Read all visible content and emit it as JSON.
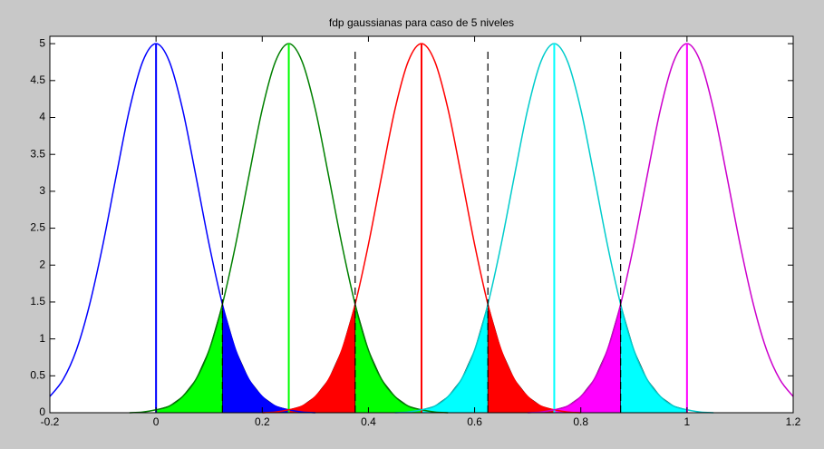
{
  "chart_data": {
    "type": "line",
    "title": "fdp gaussianas para caso de 5 niveles",
    "xlim": [
      -0.2,
      1.2
    ],
    "xticks": [
      -0.2,
      0,
      0.2,
      0.4,
      0.6,
      0.8,
      1,
      1.2
    ],
    "ylim": [
      0,
      5.1
    ],
    "yticks": [
      0,
      0.5,
      1,
      1.5,
      2,
      2.5,
      3,
      3.5,
      4,
      4.5,
      5
    ],
    "means": [
      0,
      0.25,
      0.5,
      0.75,
      1
    ],
    "thresholds": [
      0.125,
      0.375,
      0.625,
      0.875
    ],
    "threshold_top": 4.9,
    "series": [
      {
        "color": "#0000ff",
        "stem_color": "#0000ff",
        "fill_color": "#0000ff",
        "x": [
          -0.2,
          -0.175,
          -0.15,
          -0.125,
          -0.1,
          -0.075,
          -0.05,
          -0.025,
          0,
          0.025,
          0.05,
          0.075,
          0.1,
          0.125,
          0.15,
          0.175,
          0.2,
          0.225,
          0.25,
          0.275,
          0.3
        ],
        "values": [
          0.22,
          0.45,
          0.85,
          1.47,
          2.28,
          3.21,
          4.11,
          4.76,
          5,
          4.76,
          4.11,
          3.21,
          2.28,
          1.47,
          0.85,
          0.45,
          0.22,
          0.09,
          0.04,
          0.01,
          0
        ]
      },
      {
        "color": "#008000",
        "stem_color": "#00ff00",
        "fill_color": "#00ff00",
        "x": [
          -0.05,
          -0.025,
          0,
          0.025,
          0.05,
          0.075,
          0.1,
          0.125,
          0.15,
          0.175,
          0.2,
          0.225,
          0.25,
          0.275,
          0.3,
          0.325,
          0.35,
          0.375,
          0.4,
          0.425,
          0.45,
          0.475,
          0.5,
          0.525,
          0.55
        ],
        "values": [
          0,
          0.01,
          0.04,
          0.09,
          0.22,
          0.45,
          0.85,
          1.47,
          2.28,
          3.21,
          4.11,
          4.76,
          5,
          4.76,
          4.11,
          3.21,
          2.28,
          1.47,
          0.85,
          0.45,
          0.22,
          0.09,
          0.04,
          0.01,
          0
        ]
      },
      {
        "color": "#ff0000",
        "stem_color": "#ff0000",
        "fill_color": "#ff0000",
        "x": [
          0.2,
          0.225,
          0.25,
          0.275,
          0.3,
          0.325,
          0.35,
          0.375,
          0.4,
          0.425,
          0.45,
          0.475,
          0.5,
          0.525,
          0.55,
          0.575,
          0.6,
          0.625,
          0.65,
          0.675,
          0.7,
          0.725,
          0.75,
          0.775,
          0.8
        ],
        "values": [
          0,
          0.01,
          0.04,
          0.09,
          0.22,
          0.45,
          0.85,
          1.47,
          2.28,
          3.21,
          4.11,
          4.76,
          5,
          4.76,
          4.11,
          3.21,
          2.28,
          1.47,
          0.85,
          0.45,
          0.22,
          0.09,
          0.04,
          0.01,
          0
        ]
      },
      {
        "color": "#00cccc",
        "stem_color": "#00ffff",
        "fill_color": "#00ffff",
        "x": [
          0.45,
          0.475,
          0.5,
          0.525,
          0.55,
          0.575,
          0.6,
          0.625,
          0.65,
          0.675,
          0.7,
          0.725,
          0.75,
          0.775,
          0.8,
          0.825,
          0.85,
          0.875,
          0.9,
          0.925,
          0.95,
          0.975,
          1,
          1.025,
          1.05
        ],
        "values": [
          0,
          0.01,
          0.04,
          0.09,
          0.22,
          0.45,
          0.85,
          1.47,
          2.28,
          3.21,
          4.11,
          4.76,
          5,
          4.76,
          4.11,
          3.21,
          2.28,
          1.47,
          0.85,
          0.45,
          0.22,
          0.09,
          0.04,
          0.01,
          0
        ]
      },
      {
        "color": "#cc00cc",
        "stem_color": "#ff00ff",
        "fill_color": "#ff00ff",
        "x": [
          0.7,
          0.725,
          0.75,
          0.775,
          0.8,
          0.825,
          0.85,
          0.875,
          0.9,
          0.925,
          0.95,
          0.975,
          1,
          1.025,
          1.05,
          1.075,
          1.1,
          1.125,
          1.15,
          1.175,
          1.2
        ],
        "values": [
          0,
          0.01,
          0.04,
          0.09,
          0.22,
          0.45,
          0.85,
          1.47,
          2.28,
          3.21,
          4.11,
          4.76,
          5,
          4.76,
          4.11,
          3.21,
          2.28,
          1.47,
          0.85,
          0.45,
          0.22
        ]
      }
    ]
  }
}
